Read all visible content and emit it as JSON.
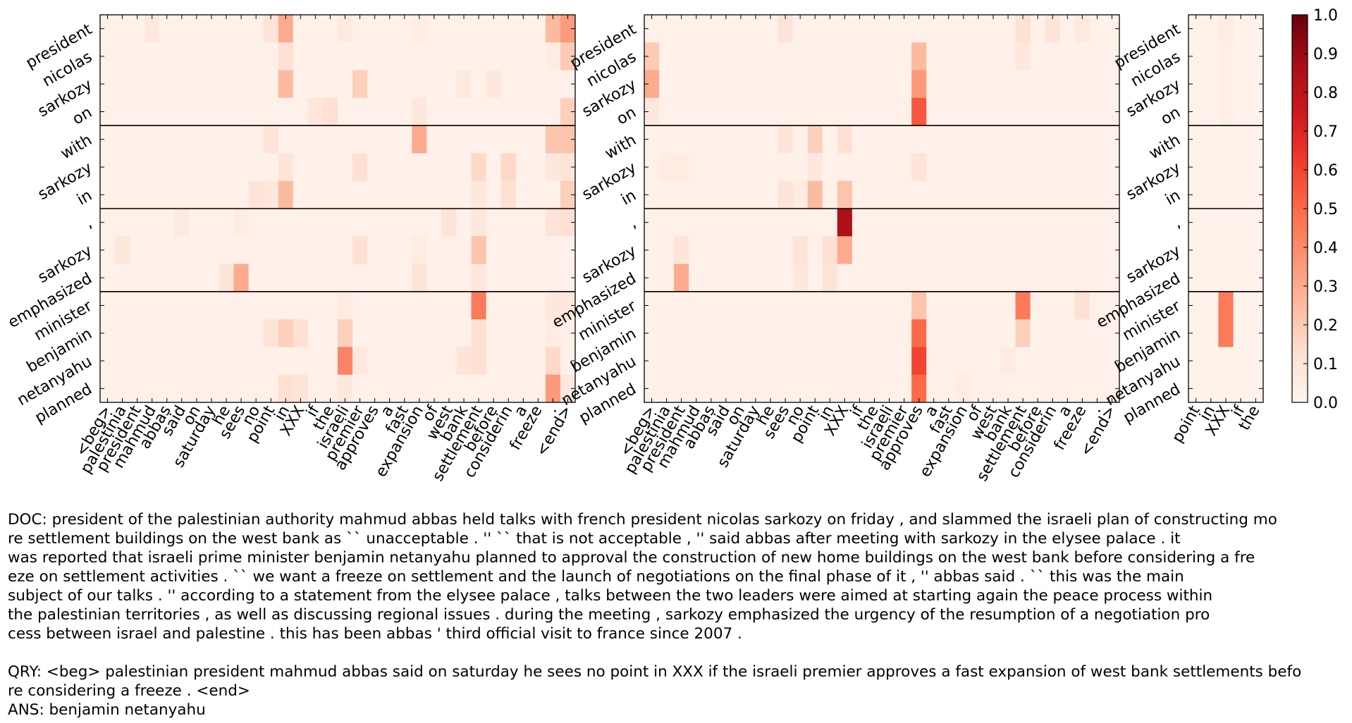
{
  "chart_data": {
    "type": "heatmap",
    "colormap": "Reds",
    "colorbar": {
      "min": 0.0,
      "max": 1.0,
      "ticks": [
        "0.0",
        "0.1",
        "0.2",
        "0.3",
        "0.4",
        "0.5",
        "0.6",
        "0.7",
        "0.8",
        "0.9",
        "1.0"
      ]
    },
    "row_labels": [
      "president",
      "nicolas",
      "sarkozy",
      "on",
      "with",
      "sarkozy",
      "in",
      ",",
      "sarkozy",
      "emphasized",
      "minister",
      "benjamin",
      "netanyahu",
      "planned"
    ],
    "row_groups": [
      [
        0,
        3
      ],
      [
        4,
        6
      ],
      [
        7,
        9
      ],
      [
        10,
        13
      ]
    ],
    "panels": [
      {
        "name": "panel-1",
        "columns": [
          "<beg>",
          "palestinia",
          "president",
          "mahmud",
          "abbas",
          "said",
          "on",
          "saturday",
          "he",
          "sees",
          "no",
          "point",
          "in",
          "XXX",
          "if",
          "the",
          "israeli",
          "premier",
          "approves",
          "a",
          "fast",
          "expansion",
          "of",
          "west",
          "bank",
          "settlement",
          "before",
          "considerin",
          "a",
          "freeze",
          ".",
          "<end>"
        ],
        "base": 0.03,
        "cells": [
          [
            0,
            3,
            0.08
          ],
          [
            0,
            11,
            0.1
          ],
          [
            0,
            12,
            0.3
          ],
          [
            0,
            16,
            0.07
          ],
          [
            0,
            21,
            0.05
          ],
          [
            0,
            30,
            0.25
          ],
          [
            0,
            31,
            0.35
          ],
          [
            1,
            12,
            0.12
          ],
          [
            1,
            30,
            0.05
          ],
          [
            1,
            31,
            0.2
          ],
          [
            2,
            12,
            0.25
          ],
          [
            2,
            17,
            0.18
          ],
          [
            2,
            24,
            0.07
          ],
          [
            2,
            26,
            0.08
          ],
          [
            3,
            14,
            0.09
          ],
          [
            3,
            15,
            0.12
          ],
          [
            3,
            21,
            0.08
          ],
          [
            3,
            31,
            0.18
          ],
          [
            4,
            11,
            0.1
          ],
          [
            4,
            21,
            0.3
          ],
          [
            4,
            30,
            0.22
          ],
          [
            4,
            31,
            0.22
          ],
          [
            5,
            12,
            0.1
          ],
          [
            5,
            17,
            0.12
          ],
          [
            5,
            25,
            0.15
          ],
          [
            5,
            27,
            0.15
          ],
          [
            5,
            30,
            0.08
          ],
          [
            5,
            31,
            0.1
          ],
          [
            6,
            10,
            0.1
          ],
          [
            6,
            11,
            0.08
          ],
          [
            6,
            12,
            0.25
          ],
          [
            6,
            25,
            0.08
          ],
          [
            6,
            27,
            0.12
          ],
          [
            6,
            31,
            0.18
          ],
          [
            7,
            5,
            0.07
          ],
          [
            7,
            9,
            0.06
          ],
          [
            7,
            23,
            0.1
          ],
          [
            7,
            25,
            0.08
          ],
          [
            7,
            30,
            0.1
          ],
          [
            7,
            31,
            0.12
          ],
          [
            8,
            1,
            0.09
          ],
          [
            8,
            17,
            0.12
          ],
          [
            8,
            25,
            0.22
          ],
          [
            8,
            21,
            0.06
          ],
          [
            9,
            8,
            0.1
          ],
          [
            9,
            9,
            0.3
          ],
          [
            9,
            21,
            0.1
          ],
          [
            9,
            25,
            0.08
          ],
          [
            10,
            25,
            0.45
          ],
          [
            10,
            16,
            0.06
          ],
          [
            10,
            30,
            0.08
          ],
          [
            10,
            31,
            0.08
          ],
          [
            11,
            11,
            0.1
          ],
          [
            11,
            12,
            0.18
          ],
          [
            11,
            13,
            0.12
          ],
          [
            11,
            16,
            0.18
          ],
          [
            11,
            25,
            0.12
          ],
          [
            11,
            30,
            0.06
          ],
          [
            12,
            16,
            0.42
          ],
          [
            12,
            17,
            0.08
          ],
          [
            12,
            24,
            0.1
          ],
          [
            12,
            25,
            0.12
          ],
          [
            12,
            30,
            0.15
          ],
          [
            13,
            12,
            0.12
          ],
          [
            13,
            13,
            0.1
          ],
          [
            13,
            16,
            0.08
          ],
          [
            13,
            30,
            0.35
          ],
          [
            13,
            31,
            0.08
          ]
        ]
      },
      {
        "name": "panel-2",
        "columns": [
          "<beg>",
          "palestinia",
          "president",
          "mahmud",
          "abbas",
          "said",
          "on",
          "saturday",
          "he",
          "sees",
          "no",
          "point",
          "in",
          "XXX",
          "if",
          "the",
          "israeli",
          "premier",
          "approves",
          "a",
          "fast",
          "expansion",
          "of",
          "west",
          "bank",
          "settlement",
          "before",
          "considerin",
          "a",
          "freeze",
          ".",
          "<end>"
        ],
        "base": 0.03,
        "cells": [
          [
            0,
            9,
            0.1
          ],
          [
            0,
            25,
            0.12
          ],
          [
            0,
            27,
            0.1
          ],
          [
            0,
            29,
            0.07
          ],
          [
            1,
            0,
            0.2
          ],
          [
            1,
            18,
            0.25
          ],
          [
            1,
            25,
            0.08
          ],
          [
            2,
            0,
            0.3
          ],
          [
            2,
            18,
            0.35
          ],
          [
            3,
            18,
            0.55
          ],
          [
            3,
            0,
            0.08
          ],
          [
            4,
            9,
            0.1
          ],
          [
            4,
            11,
            0.18
          ],
          [
            4,
            13,
            0.12
          ],
          [
            5,
            1,
            0.06
          ],
          [
            5,
            2,
            0.06
          ],
          [
            5,
            11,
            0.08
          ],
          [
            5,
            18,
            0.1
          ],
          [
            6,
            9,
            0.1
          ],
          [
            6,
            11,
            0.25
          ],
          [
            6,
            13,
            0.22
          ],
          [
            6,
            10,
            0.06
          ],
          [
            7,
            13,
            0.85
          ],
          [
            8,
            2,
            0.1
          ],
          [
            8,
            10,
            0.1
          ],
          [
            8,
            12,
            0.12
          ],
          [
            8,
            13,
            0.3
          ],
          [
            9,
            2,
            0.3
          ],
          [
            9,
            10,
            0.08
          ],
          [
            9,
            12,
            0.1
          ],
          [
            10,
            18,
            0.22
          ],
          [
            10,
            25,
            0.45
          ],
          [
            10,
            29,
            0.12
          ],
          [
            11,
            18,
            0.5
          ],
          [
            11,
            25,
            0.18
          ],
          [
            12,
            18,
            0.6
          ],
          [
            12,
            24,
            0.06
          ],
          [
            13,
            18,
            0.5
          ],
          [
            13,
            21,
            0.06
          ]
        ]
      },
      {
        "name": "panel-3",
        "columns": [
          "point",
          "in",
          "XXX",
          "if",
          "the"
        ],
        "base": 0.02,
        "cells": [
          [
            0,
            2,
            0.06
          ],
          [
            1,
            2,
            0.04
          ],
          [
            2,
            2,
            0.04
          ],
          [
            3,
            2,
            0.04
          ],
          [
            10,
            2,
            0.45
          ],
          [
            11,
            2,
            0.45
          ]
        ]
      }
    ]
  },
  "caption": {
    "doc": [
      "DOC: president of the palestinian authority mahmud abbas held talks with french president nicolas sarkozy on friday , and slammed the israeli plan of constructing mo",
      "re settlement buildings on the west bank as `` unacceptable . '' `` that is not acceptable , '' said abbas after meeting with sarkozy in the elysee palace . it",
      "was reported that israeli prime minister benjamin netanyahu planned to approval the construction of new home buildings on the west bank before considering a fre",
      "eze on settlement activities . `` we want a freeze on settlement and the launch of negotiations on the final phase of it , '' abbas said . `` this was the main",
      "subject of our talks . '' according to a statement from the elysee palace , talks between the two leaders were aimed at starting again the peace process within",
      "the palestinian territories , as well as discussing regional issues . during the meeting , sarkozy emphasized the urgency of the resumption of a negotiation pro",
      "cess between israel and palestine . this has been abbas ' third official visit to france since 2007 ."
    ],
    "qry": [
      "QRY: <beg> palestinian president mahmud abbas said on saturday he sees no point in XXX if the israeli premier approves a fast expansion of west bank settlements befo",
      "re considering a freeze . <end>"
    ],
    "ans": "ANS: benjamin netanyahu"
  }
}
